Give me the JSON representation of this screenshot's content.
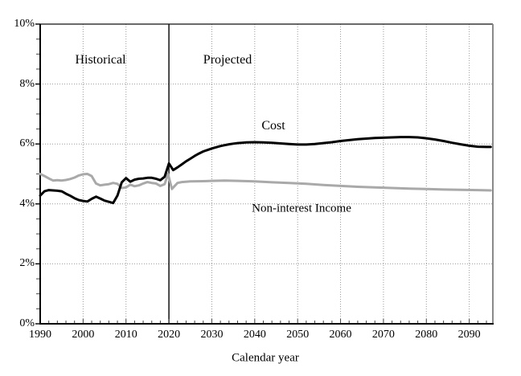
{
  "chart": {
    "xlabel": "Calendar year",
    "annotations": {
      "historical": "Historical",
      "projected": "Projected",
      "cost": "Cost",
      "income": "Non-interest Income"
    }
  },
  "chart_data": {
    "type": "line",
    "title": "",
    "xlabel": "Calendar year",
    "ylabel": "",
    "xlim": [
      1990,
      2095.5
    ],
    "ylim": [
      0,
      10
    ],
    "x_ticks": [
      1990,
      2000,
      2010,
      2020,
      2030,
      2040,
      2050,
      2060,
      2070,
      2080,
      2090
    ],
    "x_tick_labels": [
      "1990",
      "2000",
      "2010",
      "2020",
      "2030",
      "2040",
      "2050",
      "2060",
      "2070",
      "2080",
      "2090"
    ],
    "y_ticks": [
      0,
      2,
      4,
      6,
      8,
      10
    ],
    "y_tick_labels": [
      "0%",
      "2%",
      "4%",
      "6%",
      "8%",
      "10%"
    ],
    "y_grid_values": [
      2,
      4,
      6,
      8
    ],
    "x_minor_tick_step_years": 2,
    "y_minor_tick_step": 0.5,
    "grid": "dotted",
    "legend_position": "inline-labels",
    "divider_year": 2020,
    "divider_labels": {
      "left": "Historical",
      "right": "Projected"
    },
    "colors": {
      "cost": "#000000",
      "income": "#a9a9a9",
      "grid": "#999999",
      "divider": "#000000"
    },
    "series": [
      {
        "name": "Cost",
        "color": "#000000",
        "width": 3,
        "points": [
          [
            1990,
            4.28
          ],
          [
            1991,
            4.42
          ],
          [
            1992,
            4.46
          ],
          [
            1993,
            4.45
          ],
          [
            1994,
            4.44
          ],
          [
            1995,
            4.42
          ],
          [
            1996,
            4.34
          ],
          [
            1997,
            4.27
          ],
          [
            1998,
            4.19
          ],
          [
            1999,
            4.13
          ],
          [
            2000,
            4.1
          ],
          [
            2001,
            4.08
          ],
          [
            2002,
            4.17
          ],
          [
            2003,
            4.24
          ],
          [
            2004,
            4.18
          ],
          [
            2005,
            4.11
          ],
          [
            2006,
            4.07
          ],
          [
            2007,
            4.03
          ],
          [
            2008,
            4.28
          ],
          [
            2009,
            4.72
          ],
          [
            2010,
            4.86
          ],
          [
            2011,
            4.74
          ],
          [
            2012,
            4.81
          ],
          [
            2013,
            4.84
          ],
          [
            2014,
            4.85
          ],
          [
            2015,
            4.87
          ],
          [
            2016,
            4.87
          ],
          [
            2017,
            4.84
          ],
          [
            2018,
            4.79
          ],
          [
            2019,
            4.91
          ],
          [
            2020,
            5.35
          ],
          [
            2021,
            5.13
          ],
          [
            2022,
            5.22
          ],
          [
            2023,
            5.32
          ],
          [
            2024,
            5.42
          ],
          [
            2025,
            5.51
          ],
          [
            2026,
            5.6
          ],
          [
            2027,
            5.68
          ],
          [
            2028,
            5.75
          ],
          [
            2029,
            5.8
          ],
          [
            2030,
            5.85
          ],
          [
            2031,
            5.89
          ],
          [
            2032,
            5.93
          ],
          [
            2033,
            5.96
          ],
          [
            2034,
            5.99
          ],
          [
            2035,
            6.01
          ],
          [
            2036,
            6.03
          ],
          [
            2037,
            6.04
          ],
          [
            2038,
            6.05
          ],
          [
            2040,
            6.06
          ],
          [
            2042,
            6.05
          ],
          [
            2044,
            6.04
          ],
          [
            2046,
            6.02
          ],
          [
            2048,
            6.0
          ],
          [
            2050,
            5.98
          ],
          [
            2052,
            5.98
          ],
          [
            2054,
            6.0
          ],
          [
            2056,
            6.03
          ],
          [
            2058,
            6.06
          ],
          [
            2060,
            6.1
          ],
          [
            2062,
            6.13
          ],
          [
            2064,
            6.16
          ],
          [
            2066,
            6.18
          ],
          [
            2068,
            6.2
          ],
          [
            2070,
            6.21
          ],
          [
            2072,
            6.22
          ],
          [
            2074,
            6.23
          ],
          [
            2076,
            6.23
          ],
          [
            2078,
            6.22
          ],
          [
            2080,
            6.19
          ],
          [
            2082,
            6.15
          ],
          [
            2084,
            6.1
          ],
          [
            2086,
            6.04
          ],
          [
            2088,
            5.99
          ],
          [
            2090,
            5.94
          ],
          [
            2092,
            5.91
          ],
          [
            2094,
            5.9
          ],
          [
            2095,
            5.9
          ]
        ]
      },
      {
        "name": "Non-interest Income",
        "color": "#a9a9a9",
        "width": 3,
        "points": [
          [
            1990,
            5.0
          ],
          [
            1991,
            4.93
          ],
          [
            1992,
            4.85
          ],
          [
            1993,
            4.78
          ],
          [
            1994,
            4.79
          ],
          [
            1995,
            4.78
          ],
          [
            1996,
            4.8
          ],
          [
            1997,
            4.83
          ],
          [
            1998,
            4.88
          ],
          [
            1999,
            4.95
          ],
          [
            2000,
            4.99
          ],
          [
            2001,
            5.0
          ],
          [
            2002,
            4.93
          ],
          [
            2003,
            4.68
          ],
          [
            2004,
            4.62
          ],
          [
            2005,
            4.64
          ],
          [
            2006,
            4.66
          ],
          [
            2007,
            4.7
          ],
          [
            2008,
            4.67
          ],
          [
            2009,
            4.53
          ],
          [
            2010,
            4.55
          ],
          [
            2011,
            4.64
          ],
          [
            2012,
            4.59
          ],
          [
            2013,
            4.62
          ],
          [
            2014,
            4.68
          ],
          [
            2015,
            4.73
          ],
          [
            2016,
            4.7
          ],
          [
            2017,
            4.68
          ],
          [
            2018,
            4.6
          ],
          [
            2019,
            4.66
          ],
          [
            2019.8,
            5.0
          ],
          [
            2020.7,
            4.5
          ],
          [
            2022,
            4.7
          ],
          [
            2023,
            4.73
          ],
          [
            2025,
            4.75
          ],
          [
            2028,
            4.76
          ],
          [
            2030,
            4.77
          ],
          [
            2033,
            4.78
          ],
          [
            2036,
            4.77
          ],
          [
            2040,
            4.75
          ],
          [
            2044,
            4.72
          ],
          [
            2048,
            4.7
          ],
          [
            2052,
            4.67
          ],
          [
            2056,
            4.63
          ],
          [
            2060,
            4.6
          ],
          [
            2064,
            4.57
          ],
          [
            2068,
            4.55
          ],
          [
            2072,
            4.53
          ],
          [
            2076,
            4.51
          ],
          [
            2080,
            4.5
          ],
          [
            2084,
            4.48
          ],
          [
            2088,
            4.47
          ],
          [
            2092,
            4.46
          ],
          [
            2095,
            4.45
          ]
        ]
      }
    ],
    "annotations": [
      {
        "text": "Historical",
        "x_year": 2004,
        "y_pct": 8.8
      },
      {
        "text": "Projected",
        "x_year": 2033,
        "y_pct": 8.8
      },
      {
        "text": "Cost",
        "x_year": 2044,
        "y_pct": 6.6
      },
      {
        "text": "Non-interest Income",
        "x_year": 2050,
        "y_pct": 3.85
      }
    ]
  }
}
